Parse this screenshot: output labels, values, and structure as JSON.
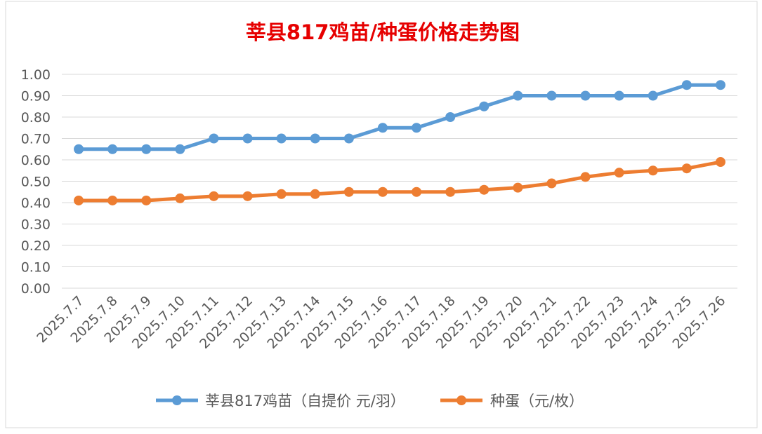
{
  "chart_data": {
    "type": "line",
    "title": "莘县817鸡苗/种蛋价格走势图",
    "categories": [
      "2025.7.7",
      "2025.7.8",
      "2025.7.9",
      "2025.7.10",
      "2025.7.11",
      "2025.7.12",
      "2025.7.13",
      "2025.7.14",
      "2025.7.15",
      "2025.7.16",
      "2025.7.17",
      "2025.7.18",
      "2025.7.19",
      "2025.7.20",
      "2025.7.21",
      "2025.7.22",
      "2025.7.23",
      "2025.7.24",
      "2025.7.25",
      "2025.7.26"
    ],
    "series": [
      {
        "name": "莘县817鸡苗（自提价 元/羽）",
        "color": "#5b9bd5",
        "values": [
          0.65,
          0.65,
          0.65,
          0.65,
          0.7,
          0.7,
          0.7,
          0.7,
          0.7,
          0.75,
          0.75,
          0.8,
          0.85,
          0.9,
          0.9,
          0.9,
          0.9,
          0.9,
          0.95,
          0.95
        ]
      },
      {
        "name": "种蛋（元/枚）",
        "color": "#ed7d31",
        "values": [
          0.41,
          0.41,
          0.41,
          0.42,
          0.43,
          0.43,
          0.44,
          0.44,
          0.45,
          0.45,
          0.45,
          0.45,
          0.46,
          0.47,
          0.49,
          0.52,
          0.54,
          0.55,
          0.56,
          0.59
        ]
      }
    ],
    "ylim": [
      0,
      1.0
    ],
    "yticks": [
      "0.00",
      "0.10",
      "0.20",
      "0.30",
      "0.40",
      "0.50",
      "0.60",
      "0.70",
      "0.80",
      "0.90",
      "1.00"
    ],
    "grid": true,
    "legend_position": "bottom",
    "title_color": "#e60000"
  }
}
